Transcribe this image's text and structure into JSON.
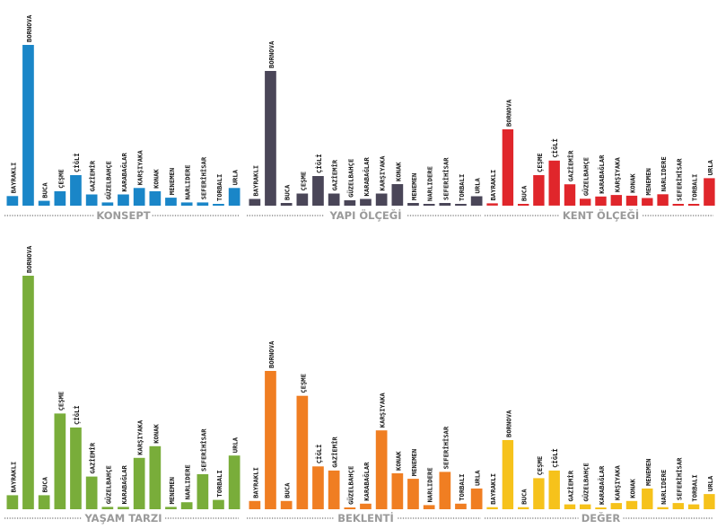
{
  "chart_data": [
    {
      "type": "bar",
      "title": "KONSEPT",
      "color": "#1a86c8",
      "ylim": [
        0,
        100
      ],
      "categories": [
        "BAYRAKLI",
        "BORNOVA",
        "BUCA",
        "ÇEŞME",
        "ÇİĞLİ",
        "GAZİEMİR",
        "GÜZELBAHÇE",
        "KARABAĞLAR",
        "KARŞIYAKA",
        "KONAK",
        "MENEMEN",
        "NARLIDERE",
        "SEFERİHİSAR",
        "TORBALI",
        "URLA"
      ],
      "values": [
        6,
        100,
        3,
        9,
        19,
        7,
        2,
        7,
        11,
        9,
        5,
        2,
        2,
        1,
        11
      ]
    },
    {
      "type": "bar",
      "title": "YAPI ÖLÇEĞİ",
      "color": "#4a4658",
      "ylim": [
        0,
        100
      ],
      "categories": [
        "BAYRAKLI",
        "BORNOVA",
        "BUCA",
        "ÇEŞME",
        "ÇİĞLİ",
        "GAZİEMİR",
        "GÜZELBAHÇE",
        "KARABAĞLAR",
        "KARŞIYAKA",
        "KONAK",
        "MENEMEN",
        "NARLIDERE",
        "SEFERİHİSAR",
        "TORBALI",
        "URLA"
      ],
      "values": [
        5,
        100,
        2,
        9,
        22,
        9,
        4,
        5,
        9,
        16,
        2,
        1,
        2,
        1,
        7
      ]
    },
    {
      "type": "bar",
      "title": "KENT ÖLÇEĞİ",
      "color": "#e0262b",
      "ylim": [
        0,
        100
      ],
      "categories": [
        "BAYRAKLI",
        "BORNOVA",
        "BUCA",
        "ÇEŞME",
        "ÇİĞLİ",
        "GAZİEMİR",
        "GÜZELBAHÇE",
        "KARABAĞLAR",
        "KARŞIYAKA",
        "KONAK",
        "MENEMEN",
        "NARLIDERE",
        "SEFERİHİSAR",
        "TORBALI",
        "URLA"
      ],
      "values": [
        3,
        100,
        1,
        40,
        59,
        28,
        9,
        12,
        14,
        13,
        10,
        15,
        1,
        2,
        36
      ]
    },
    {
      "type": "bar",
      "title": "YAŞAM TARZI",
      "color": "#79ad3a",
      "ylim": [
        0,
        100
      ],
      "categories": [
        "BAYRAKLI",
        "BORNOVA",
        "BUCA",
        "ÇEŞME",
        "ÇİĞLİ",
        "GAZİEMİR",
        "GÜZELBAHÇE",
        "KARABAĞLAR",
        "KARŞIYAKA",
        "KONAK",
        "MENEMEN",
        "NARLIDERE",
        "SEFERİHİSAR",
        "TORBALI",
        "URLA"
      ],
      "values": [
        6,
        100,
        6,
        41,
        35,
        14,
        1,
        1,
        22,
        27,
        1,
        3,
        15,
        4,
        23
      ]
    },
    {
      "type": "bar",
      "title": "BEKLENTİ",
      "color": "#f07e22",
      "ylim": [
        0,
        100
      ],
      "categories": [
        "BAYRAKLI",
        "BORNOVA",
        "BUCA",
        "ÇEŞME",
        "ÇİĞLİ",
        "GAZİEMİR",
        "GÜZELBAHÇE",
        "KARABAĞLAR",
        "KARŞIYAKA",
        "KONAK",
        "MENEMEN",
        "NARLIDERE",
        "SEFERİHİSAR",
        "TORBALI",
        "URLA"
      ],
      "values": [
        6,
        100,
        6,
        82,
        31,
        28,
        1,
        4,
        57,
        26,
        22,
        3,
        27,
        4,
        15
      ]
    },
    {
      "type": "bar",
      "title": "DEĞER",
      "color": "#f6c21b",
      "ylim": [
        0,
        100
      ],
      "categories": [
        "BAYRAKLI",
        "BORNOVA",
        "BUCA",
        "ÇEŞME",
        "ÇİĞLİ",
        "GAZİEMİR",
        "GÜZELBAHÇE",
        "KARABAĞLAR",
        "KARŞIYAKA",
        "KONAK",
        "MENEMEN",
        "NARLIDERE",
        "SEFERİHİSAR",
        "TORBALI",
        "URLA"
      ],
      "values": [
        3,
        100,
        3,
        45,
        56,
        7,
        7,
        1,
        9,
        12,
        30,
        3,
        9,
        7,
        22
      ]
    }
  ]
}
